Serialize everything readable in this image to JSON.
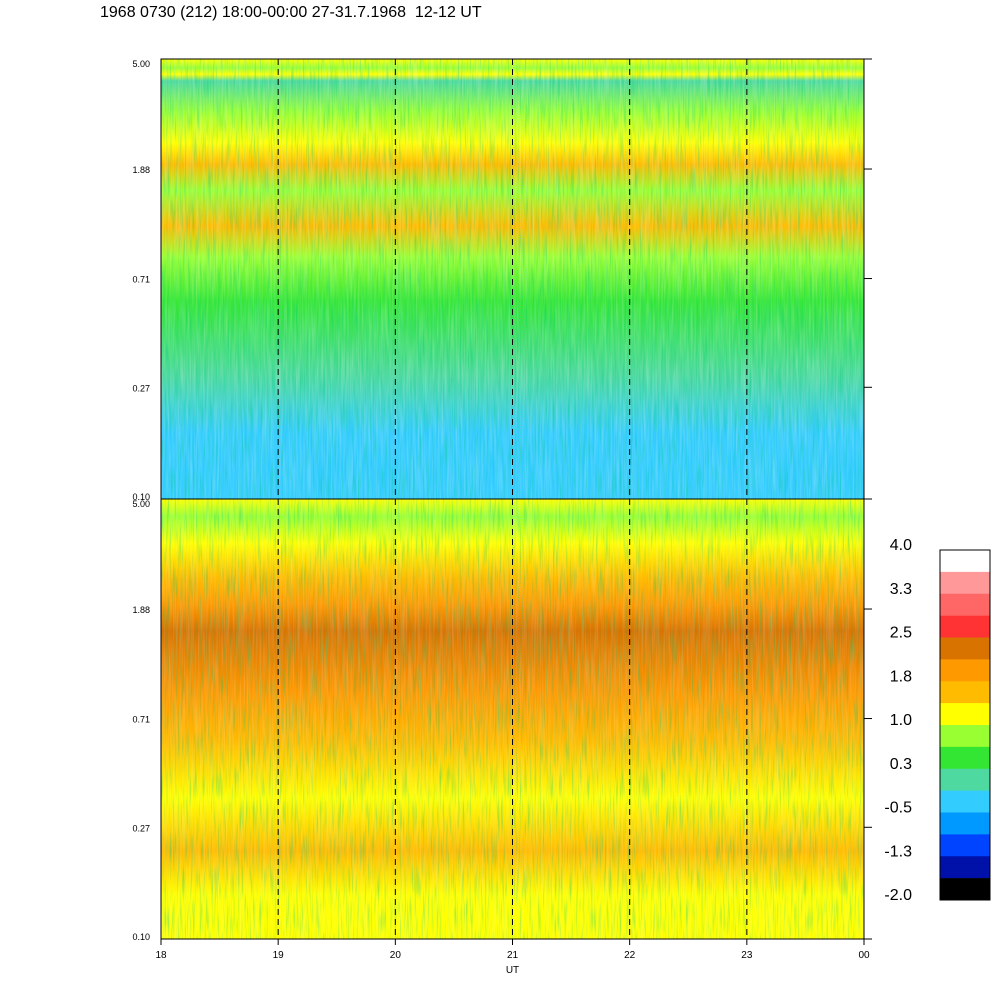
{
  "title": "1968 0730 (212) 18:00-00:00 27-31.7.1968  12-12 UT",
  "chart_data": [
    {
      "type": "heatmap",
      "panel": "upper",
      "y_ticks": [
        "5.00",
        "1.88",
        "0.71",
        "0.27",
        "0.10"
      ],
      "y_scale": "log",
      "ylim": [
        0.1,
        5.0
      ],
      "x_gridlines": [
        19,
        20,
        21,
        22,
        23
      ],
      "grid_style": "dashed vertical"
    },
    {
      "type": "heatmap",
      "panel": "lower",
      "y_ticks": [
        "5.00",
        "1.88",
        "0.71",
        "0.27",
        "0.10"
      ],
      "y_scale": "log",
      "ylim": [
        0.1,
        5.0
      ],
      "x_ticks": [
        "18",
        "19",
        "20",
        "21",
        "22",
        "23",
        "00"
      ],
      "xlabel": "UT",
      "x_gridlines": [
        19,
        20,
        21,
        22,
        23
      ],
      "grid_style": "dashed vertical"
    }
  ],
  "colorbar": {
    "labels": [
      "4.0",
      "3.3",
      "2.5",
      "1.8",
      "1.0",
      "0.3",
      "-0.5",
      "-1.3",
      "-2.0"
    ],
    "colors": [
      "#ffffff",
      "#ff9999",
      "#ff6666",
      "#ff3333",
      "#d97300",
      "#ff9900",
      "#ffbb00",
      "#ffff00",
      "#99ff33",
      "#33e633",
      "#4dd9a0",
      "#33ccff",
      "#0099ff",
      "#0044ff",
      "#0011aa",
      "#000000"
    ]
  }
}
